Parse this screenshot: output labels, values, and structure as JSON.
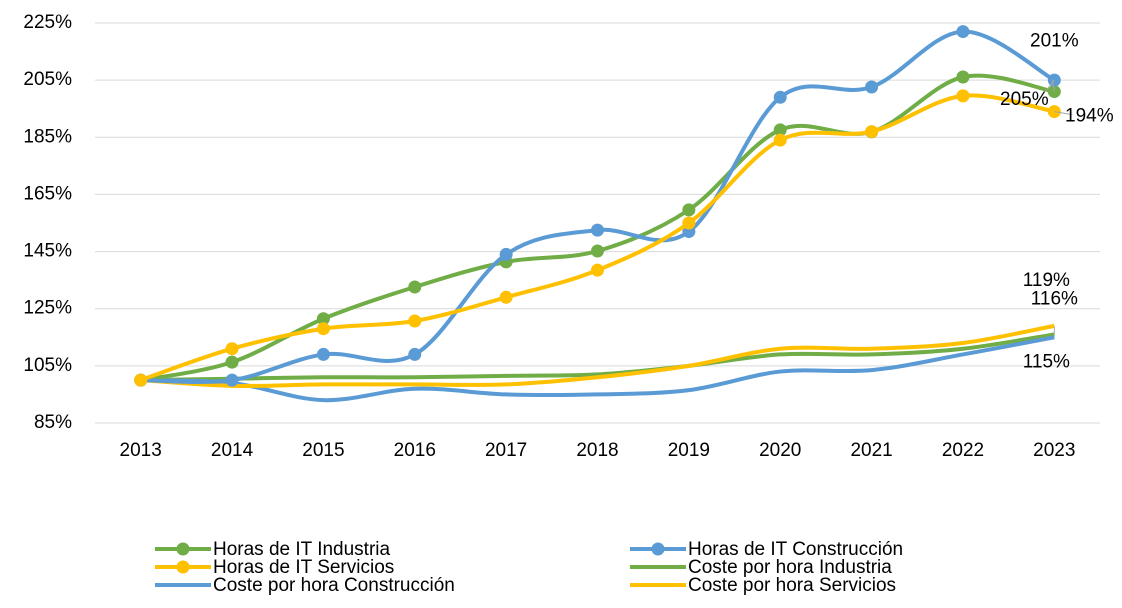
{
  "chart_data": {
    "type": "line",
    "categories": [
      "2013",
      "2014",
      "2015",
      "2016",
      "2017",
      "2018",
      "2019",
      "2020",
      "2021",
      "2022",
      "2023"
    ],
    "ylim": [
      85,
      225
    ],
    "yticks": [
      {
        "value": 85,
        "label": "85%"
      },
      {
        "value": 105,
        "label": "105%"
      },
      {
        "value": 125,
        "label": "125%"
      },
      {
        "value": 145,
        "label": "145%"
      },
      {
        "value": 165,
        "label": "165%"
      },
      {
        "value": 185,
        "label": "185%"
      },
      {
        "value": 205,
        "label": "205%"
      },
      {
        "value": 225,
        "label": "225%"
      }
    ],
    "grid": true,
    "smooth": true,
    "legend": "bottom",
    "series": [
      {
        "name": "Horas de IT Industria",
        "color": "#70ad47",
        "markers": true,
        "values": [
          100,
          106.3,
          121.5,
          132.6,
          141.4,
          145.2,
          159.6,
          187.6,
          186.9,
          206.1,
          201
        ],
        "value_labels": [
          null,
          null,
          null,
          null,
          null,
          null,
          null,
          null,
          null,
          null,
          "201%"
        ]
      },
      {
        "name": "Horas de IT Construcción",
        "color": "#5b9bd5",
        "markers": true,
        "values": [
          100,
          100,
          109,
          109,
          144,
          152.5,
          152,
          199,
          202.6,
          222,
          205
        ],
        "value_labels": [
          null,
          null,
          null,
          null,
          null,
          null,
          null,
          null,
          null,
          null,
          "205%"
        ]
      },
      {
        "name": "Horas de IT Servicios",
        "color": "#ffc000",
        "markers": true,
        "values": [
          100,
          111,
          118,
          120.7,
          129,
          138.5,
          155,
          184,
          187,
          199.5,
          194
        ],
        "value_labels": [
          null,
          null,
          null,
          null,
          null,
          null,
          null,
          null,
          null,
          null,
          "194%"
        ]
      },
      {
        "name": "Coste por hora Industria",
        "color": "#70ad47",
        "markers": false,
        "values": [
          100,
          100.5,
          101,
          101,
          101.5,
          102,
          105,
          109,
          109,
          111,
          116
        ],
        "value_labels": [
          null,
          null,
          null,
          null,
          null,
          null,
          null,
          null,
          null,
          null,
          "116%"
        ]
      },
      {
        "name": "Coste por hora Construcción",
        "color": "#5b9bd5",
        "markers": false,
        "values": [
          100,
          99,
          93,
          97,
          95,
          95,
          96.5,
          103,
          103.5,
          109,
          115
        ],
        "value_labels": [
          null,
          null,
          null,
          null,
          null,
          null,
          null,
          null,
          null,
          null,
          "115%"
        ]
      },
      {
        "name": "Coste por hora Servicios",
        "color": "#ffc000",
        "markers": false,
        "values": [
          100,
          98,
          98.5,
          98.5,
          98.5,
          101,
          105,
          111,
          111,
          113,
          119
        ],
        "value_labels": [
          null,
          null,
          null,
          null,
          null,
          null,
          null,
          null,
          null,
          null,
          "119%"
        ]
      }
    ]
  }
}
